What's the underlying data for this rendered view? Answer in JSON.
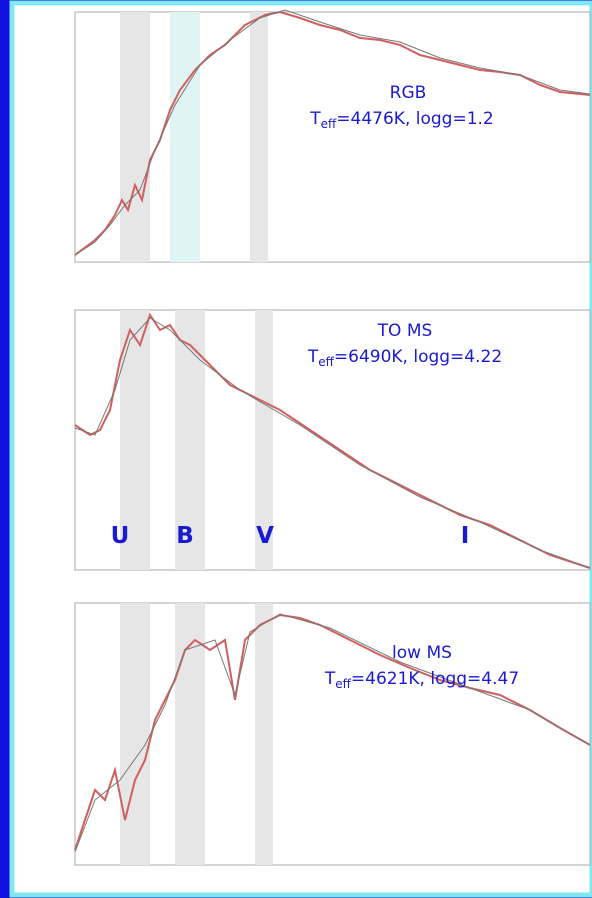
{
  "panels": [
    {
      "name": "RGB",
      "teff": {
        "symbol": "T",
        "subscript": "eff",
        "rest": "=4476K, logg=1.2"
      }
    },
    {
      "name": "TO MS",
      "teff": {
        "symbol": "T",
        "subscript": "eff",
        "rest": "=6490K, logg=4.22"
      },
      "bands": [
        "U",
        "B",
        "V",
        "I"
      ]
    },
    {
      "name": "low MS",
      "teff": {
        "symbol": "T",
        "subscript": "eff",
        "rest": "=4621K, logg=4.47"
      }
    }
  ]
}
